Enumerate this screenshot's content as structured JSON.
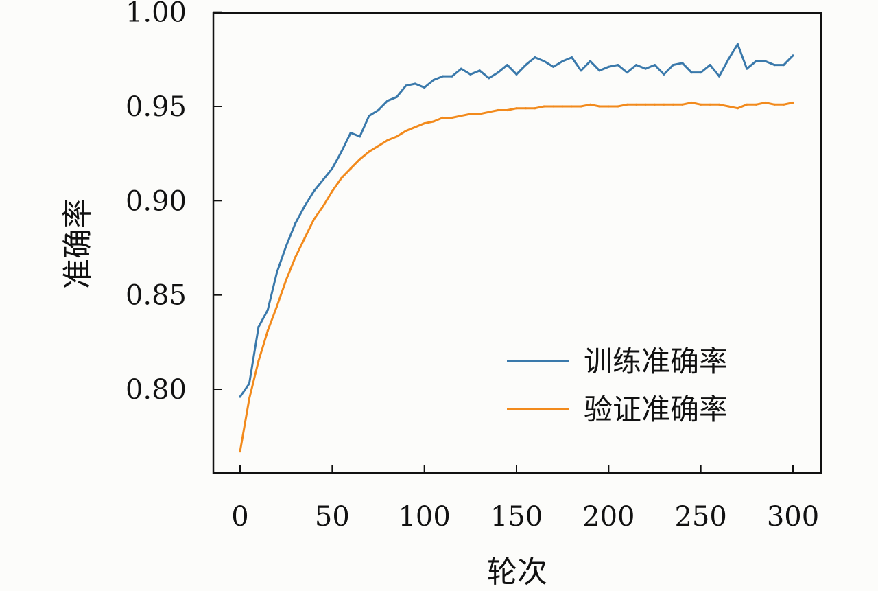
{
  "chart_data": {
    "type": "line",
    "title": "",
    "xlabel": "轮次",
    "ylabel": "准确率",
    "xlim": [
      0,
      300
    ],
    "ylim": [
      0.765,
      1.0
    ],
    "xticks": [
      0,
      50,
      100,
      150,
      200,
      250,
      300
    ],
    "xtick_labels": [
      "0",
      "50",
      "100",
      "150",
      "200",
      "250",
      "300"
    ],
    "yticks": [
      0.8,
      0.85,
      0.9,
      0.95,
      1.0
    ],
    "ytick_labels": [
      "0.80",
      "0.85",
      "0.90",
      "0.95",
      "1.00"
    ],
    "grid": false,
    "legend_position": "lower-right",
    "series": [
      {
        "name": "训练准确率",
        "color": "#3a79ab",
        "x": [
          0,
          5,
          10,
          15,
          20,
          25,
          30,
          35,
          40,
          45,
          50,
          55,
          60,
          65,
          70,
          75,
          80,
          85,
          90,
          95,
          100,
          105,
          110,
          115,
          120,
          125,
          130,
          135,
          140,
          145,
          150,
          155,
          160,
          165,
          170,
          175,
          180,
          185,
          190,
          195,
          200,
          205,
          210,
          215,
          220,
          225,
          230,
          235,
          240,
          245,
          250,
          255,
          260,
          265,
          270,
          275,
          280,
          285,
          290,
          295,
          300
        ],
        "y": [
          0.796,
          0.803,
          0.833,
          0.842,
          0.862,
          0.876,
          0.888,
          0.897,
          0.905,
          0.911,
          0.917,
          0.926,
          0.936,
          0.934,
          0.945,
          0.948,
          0.953,
          0.955,
          0.961,
          0.962,
          0.96,
          0.964,
          0.966,
          0.966,
          0.97,
          0.967,
          0.969,
          0.965,
          0.968,
          0.972,
          0.967,
          0.972,
          0.976,
          0.974,
          0.971,
          0.974,
          0.976,
          0.969,
          0.974,
          0.969,
          0.971,
          0.972,
          0.968,
          0.972,
          0.97,
          0.972,
          0.967,
          0.972,
          0.973,
          0.968,
          0.968,
          0.972,
          0.966,
          0.975,
          0.983,
          0.97,
          0.974,
          0.974,
          0.972,
          0.972,
          0.977
        ]
      },
      {
        "name": "验证准确率",
        "color": "#f28a1c",
        "x": [
          0,
          5,
          10,
          15,
          20,
          25,
          30,
          35,
          40,
          45,
          50,
          55,
          60,
          65,
          70,
          75,
          80,
          85,
          90,
          95,
          100,
          105,
          110,
          115,
          120,
          125,
          130,
          135,
          140,
          145,
          150,
          155,
          160,
          165,
          170,
          175,
          180,
          185,
          190,
          195,
          200,
          205,
          210,
          215,
          220,
          225,
          230,
          235,
          240,
          245,
          250,
          255,
          260,
          265,
          270,
          275,
          280,
          285,
          290,
          295,
          300
        ],
        "y": [
          0.767,
          0.795,
          0.815,
          0.831,
          0.844,
          0.858,
          0.87,
          0.88,
          0.89,
          0.897,
          0.905,
          0.912,
          0.917,
          0.922,
          0.926,
          0.929,
          0.932,
          0.934,
          0.937,
          0.939,
          0.941,
          0.942,
          0.944,
          0.944,
          0.945,
          0.946,
          0.946,
          0.947,
          0.948,
          0.948,
          0.949,
          0.949,
          0.949,
          0.95,
          0.95,
          0.95,
          0.95,
          0.95,
          0.951,
          0.95,
          0.95,
          0.95,
          0.951,
          0.951,
          0.951,
          0.951,
          0.951,
          0.951,
          0.951,
          0.952,
          0.951,
          0.951,
          0.951,
          0.95,
          0.949,
          0.951,
          0.951,
          0.952,
          0.951,
          0.951,
          0.952
        ]
      }
    ]
  }
}
